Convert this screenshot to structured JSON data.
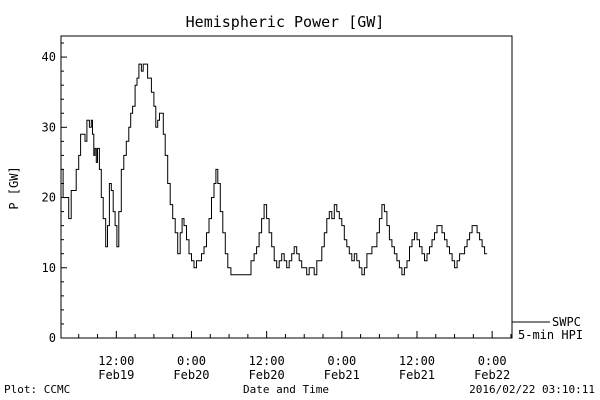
{
  "chart_data": {
    "type": "line",
    "title": "Hemispheric Power [GW]",
    "xlabel": "Date and Time",
    "ylabel": "P [GW]",
    "ylim": [
      0,
      43
    ],
    "y_ticks": [
      "0",
      "10",
      "20",
      "30",
      "40"
    ],
    "x_ticks": [
      {
        "hour": 12,
        "time": "12:00",
        "date": "Feb19"
      },
      {
        "hour": 24,
        "time": "0:00",
        "date": "Feb20"
      },
      {
        "hour": 36,
        "time": "12:00",
        "date": "Feb20"
      },
      {
        "hour": 48,
        "time": "0:00",
        "date": "Feb21"
      },
      {
        "hour": 60,
        "time": "12:00",
        "date": "Feb21"
      },
      {
        "hour": 72,
        "time": "0:00",
        "date": "Feb22"
      }
    ],
    "x_start": "2016-02-19 03:10",
    "x_end": "2016-02-22 03:10",
    "legend": {
      "line1": "SWPC",
      "line2": "5-min HPI",
      "placement": "bottom-right"
    },
    "grid": false,
    "series": [
      {
        "name": "SWPC 5-min HPI",
        "points": [
          [
            3.2,
            24
          ],
          [
            3.5,
            20
          ],
          [
            4.0,
            20
          ],
          [
            4.4,
            17
          ],
          [
            4.8,
            21
          ],
          [
            5.2,
            21
          ],
          [
            5.6,
            24
          ],
          [
            6.0,
            26
          ],
          [
            6.3,
            29
          ],
          [
            6.7,
            29
          ],
          [
            7.0,
            28
          ],
          [
            7.3,
            31
          ],
          [
            7.7,
            30
          ],
          [
            8.0,
            31
          ],
          [
            8.2,
            29
          ],
          [
            8.4,
            26
          ],
          [
            8.6,
            27
          ],
          [
            8.8,
            25
          ],
          [
            9.0,
            27
          ],
          [
            9.3,
            24
          ],
          [
            9.6,
            20
          ],
          [
            9.9,
            17
          ],
          [
            10.3,
            13
          ],
          [
            10.6,
            16
          ],
          [
            10.9,
            22
          ],
          [
            11.2,
            21
          ],
          [
            11.5,
            18
          ],
          [
            11.8,
            16
          ],
          [
            12.1,
            13
          ],
          [
            12.4,
            18
          ],
          [
            12.8,
            24
          ],
          [
            13.2,
            26
          ],
          [
            13.6,
            28
          ],
          [
            14.0,
            30
          ],
          [
            14.3,
            32
          ],
          [
            14.6,
            33
          ],
          [
            15.0,
            36
          ],
          [
            15.3,
            37
          ],
          [
            15.6,
            39
          ],
          [
            16.0,
            38
          ],
          [
            16.3,
            39
          ],
          [
            16.6,
            39
          ],
          [
            17.0,
            37
          ],
          [
            17.3,
            37
          ],
          [
            17.6,
            35
          ],
          [
            18.0,
            33
          ],
          [
            18.3,
            30
          ],
          [
            18.6,
            31
          ],
          [
            18.9,
            32
          ],
          [
            19.2,
            32
          ],
          [
            19.5,
            29
          ],
          [
            19.8,
            26
          ],
          [
            20.2,
            22
          ],
          [
            20.6,
            19
          ],
          [
            21.0,
            17
          ],
          [
            21.4,
            15
          ],
          [
            21.8,
            12
          ],
          [
            22.2,
            15
          ],
          [
            22.5,
            17
          ],
          [
            22.8,
            16
          ],
          [
            23.2,
            14
          ],
          [
            23.6,
            12
          ],
          [
            24.0,
            11
          ],
          [
            24.4,
            10
          ],
          [
            24.8,
            11
          ],
          [
            25.2,
            11
          ],
          [
            25.6,
            12
          ],
          [
            26.0,
            13
          ],
          [
            26.4,
            15
          ],
          [
            26.8,
            17
          ],
          [
            27.2,
            20
          ],
          [
            27.6,
            22
          ],
          [
            27.9,
            24
          ],
          [
            28.2,
            22
          ],
          [
            28.6,
            18
          ],
          [
            29.0,
            15
          ],
          [
            29.4,
            12
          ],
          [
            29.8,
            10
          ],
          [
            30.3,
            9
          ],
          [
            31.0,
            9
          ],
          [
            32.0,
            9
          ],
          [
            33.0,
            9
          ],
          [
            33.5,
            11
          ],
          [
            34.0,
            12
          ],
          [
            34.4,
            13
          ],
          [
            34.8,
            15
          ],
          [
            35.2,
            17
          ],
          [
            35.6,
            19
          ],
          [
            36.0,
            17
          ],
          [
            36.4,
            15
          ],
          [
            36.8,
            13
          ],
          [
            37.2,
            11
          ],
          [
            37.6,
            10
          ],
          [
            38.0,
            11
          ],
          [
            38.4,
            12
          ],
          [
            38.8,
            11
          ],
          [
            39.2,
            10
          ],
          [
            39.6,
            11
          ],
          [
            40.0,
            12
          ],
          [
            40.4,
            13
          ],
          [
            40.8,
            12
          ],
          [
            41.2,
            11
          ],
          [
            41.6,
            10
          ],
          [
            42.0,
            10
          ],
          [
            42.4,
            9
          ],
          [
            42.8,
            10
          ],
          [
            43.2,
            10
          ],
          [
            43.6,
            9
          ],
          [
            44.0,
            11
          ],
          [
            44.4,
            11
          ],
          [
            44.8,
            13
          ],
          [
            45.2,
            15
          ],
          [
            45.6,
            17
          ],
          [
            46.0,
            18
          ],
          [
            46.4,
            17
          ],
          [
            46.8,
            19
          ],
          [
            47.2,
            18
          ],
          [
            47.6,
            17
          ],
          [
            48.0,
            16
          ],
          [
            48.4,
            14
          ],
          [
            48.8,
            13
          ],
          [
            49.2,
            12
          ],
          [
            49.6,
            11
          ],
          [
            50.0,
            12
          ],
          [
            50.4,
            11
          ],
          [
            50.8,
            10
          ],
          [
            51.2,
            9
          ],
          [
            51.6,
            10
          ],
          [
            52.0,
            12
          ],
          [
            52.4,
            12
          ],
          [
            52.8,
            13
          ],
          [
            53.2,
            13
          ],
          [
            53.6,
            15
          ],
          [
            54.0,
            17
          ],
          [
            54.4,
            19
          ],
          [
            54.8,
            18
          ],
          [
            55.2,
            16
          ],
          [
            55.6,
            14
          ],
          [
            56.0,
            13
          ],
          [
            56.4,
            12
          ],
          [
            56.8,
            11
          ],
          [
            57.2,
            10
          ],
          [
            57.6,
            9
          ],
          [
            58.0,
            10
          ],
          [
            58.4,
            11
          ],
          [
            58.8,
            13
          ],
          [
            59.2,
            14
          ],
          [
            59.6,
            15
          ],
          [
            60.0,
            14
          ],
          [
            60.4,
            13
          ],
          [
            60.8,
            12
          ],
          [
            61.2,
            11
          ],
          [
            61.6,
            12
          ],
          [
            62.0,
            13
          ],
          [
            62.4,
            14
          ],
          [
            62.8,
            15
          ],
          [
            63.2,
            16
          ],
          [
            63.6,
            16
          ],
          [
            64.0,
            15
          ],
          [
            64.4,
            14
          ],
          [
            64.8,
            13
          ],
          [
            65.2,
            12
          ],
          [
            65.6,
            11
          ],
          [
            66.0,
            10
          ],
          [
            66.4,
            11
          ],
          [
            66.8,
            12
          ],
          [
            67.2,
            12
          ],
          [
            67.6,
            13
          ],
          [
            68.0,
            14
          ],
          [
            68.4,
            15
          ],
          [
            68.8,
            16
          ],
          [
            69.2,
            16
          ],
          [
            69.6,
            15
          ],
          [
            70.0,
            14
          ],
          [
            70.4,
            13
          ],
          [
            70.8,
            12
          ],
          [
            71.2,
            12
          ]
        ]
      }
    ]
  },
  "footer": {
    "left": "Plot: CCMC",
    "center": "Date and Time",
    "right": "2016/02/22 03:10:11"
  }
}
